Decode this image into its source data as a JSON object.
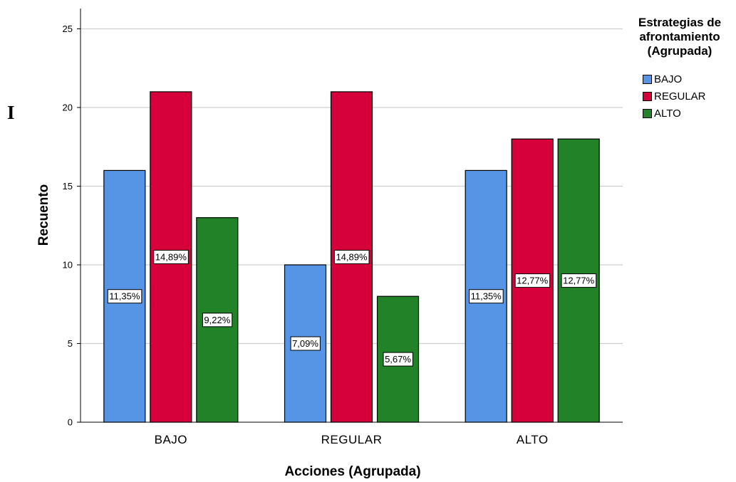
{
  "stray_glyph": "I",
  "chart_data": {
    "type": "bar",
    "title": "",
    "xlabel": "Acciones (Agrupada)",
    "ylabel": "Recuento",
    "ylim": [
      0,
      26
    ],
    "yticks": [
      0,
      5,
      10,
      15,
      20,
      25
    ],
    "grid": true,
    "legend": {
      "title": "Estrategias de afrontamiento (Agrupada)",
      "title_lines": [
        "Estrategias de",
        "afrontamiento",
        "(Agrupada)"
      ],
      "position": "top-right"
    },
    "categories": [
      "BAJO",
      "REGULAR",
      "ALTO"
    ],
    "series": [
      {
        "name": "BAJO",
        "color": "#5694e6",
        "values": [
          16,
          10,
          16
        ],
        "labels": [
          "11,35%",
          "7,09%",
          "11,35%"
        ]
      },
      {
        "name": "REGULAR",
        "color": "#d6003a",
        "values": [
          21,
          21,
          18
        ],
        "labels": [
          "14,89%",
          "14,89%",
          "12,77%"
        ]
      },
      {
        "name": "ALTO",
        "color": "#218228",
        "values": [
          13,
          8,
          18
        ],
        "labels": [
          "9,22%",
          "5,67%",
          "12,77%"
        ]
      }
    ]
  }
}
